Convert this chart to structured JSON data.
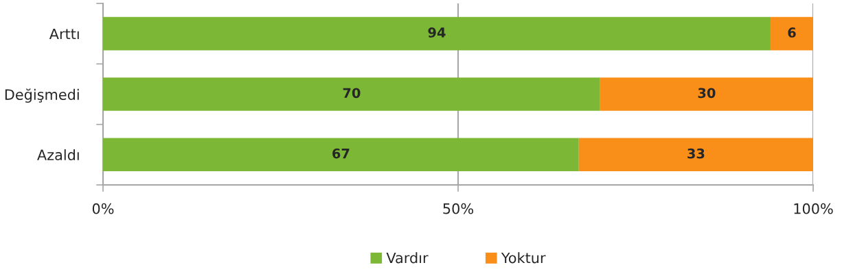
{
  "chart_data": {
    "type": "bar",
    "orientation": "horizontal",
    "stacked": true,
    "categories": [
      "Arttı",
      "Değişmedi",
      "Azaldı"
    ],
    "series": [
      {
        "name": "Vardır",
        "color": "#7cb835",
        "values": [
          94,
          70,
          67
        ]
      },
      {
        "name": "Yoktur",
        "color": "#f98e19",
        "values": [
          6,
          30,
          33
        ]
      }
    ],
    "xlim": [
      0,
      100
    ],
    "xticks": [
      {
        "value": 0,
        "label": "0%"
      },
      {
        "value": 50,
        "label": "50%"
      },
      {
        "value": 100,
        "label": "100%"
      }
    ],
    "grid": "x",
    "legend": "bottom",
    "data_labels": true
  }
}
